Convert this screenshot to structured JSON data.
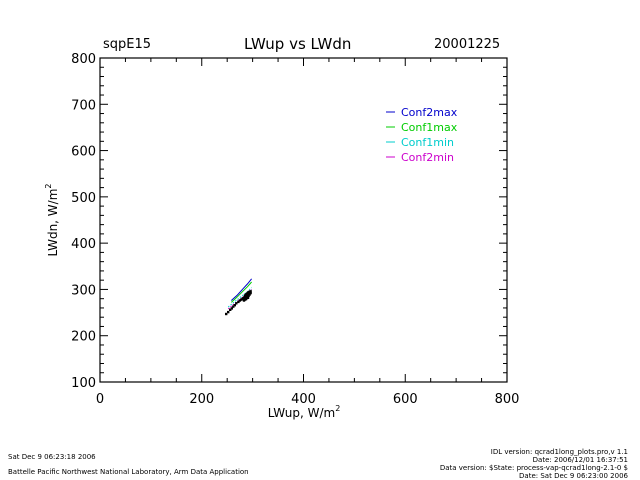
{
  "header": {
    "site": "sqpE15",
    "title": "LWup vs LWdn",
    "date": "20001225"
  },
  "footer": {
    "left_line1": "Sat Dec  9 06:23:18 2006",
    "left_line2": "Battelle Pacific Northwest National Laboratory, Arm Data Application",
    "right_line1": "IDL version: qcrad1long_plots.pro,v 1.1",
    "right_line2": "Date: 2006/12/01 16:37:51",
    "right_line3": "Data version: $State: process-vap-qcrad1long-2.1-0 $",
    "right_line4": "Date: Sat Dec  9 06:23:00 2006"
  },
  "chart_data": {
    "type": "scatter",
    "title": "LWup vs LWdn",
    "xlabel": "LWup, W/m",
    "xlabel_sup": "2",
    "ylabel": "LWdn, W/m",
    "ylabel_sup": "2",
    "xlim": [
      0,
      800
    ],
    "ylim": [
      100,
      800
    ],
    "xticks": [
      0,
      200,
      400,
      600,
      800
    ],
    "yticks": [
      100,
      200,
      300,
      400,
      500,
      600,
      700,
      800
    ],
    "legend_position": "top-right",
    "series": [
      {
        "name": "Conf2max",
        "color": "#0000cc",
        "style": "line",
        "x": [
          258,
          270,
          280,
          290,
          298
        ],
        "y": [
          276,
          288,
          300,
          312,
          323
        ]
      },
      {
        "name": "Conf1max",
        "color": "#00cc00",
        "style": "line",
        "x": [
          258,
          270,
          280,
          290,
          298
        ],
        "y": [
          272,
          284,
          295,
          306,
          316
        ]
      },
      {
        "name": "Conf1min",
        "color": "#00cccc",
        "style": "line",
        "x": [
          252,
          265,
          278,
          290,
          298
        ],
        "y": [
          262,
          274,
          285,
          295,
          304
        ]
      },
      {
        "name": "Conf2min",
        "color": "#cc00cc",
        "style": "line",
        "x": [
          252,
          265,
          278,
          290,
          298
        ],
        "y": [
          258,
          270,
          281,
          291,
          300
        ]
      },
      {
        "name": "",
        "color": "#000000",
        "style": "points",
        "x": [
          248,
          252,
          256,
          259,
          262,
          265,
          268,
          272,
          275,
          278,
          280,
          282,
          284,
          285,
          286,
          287,
          288,
          289,
          290,
          291,
          292,
          293,
          294,
          295,
          296,
          285,
          288,
          290,
          292,
          294,
          296,
          283,
          287,
          291
        ],
        "y": [
          247,
          251,
          256,
          259,
          263,
          266,
          270,
          273,
          276,
          278,
          280,
          281,
          283,
          286,
          288,
          284,
          290,
          287,
          292,
          289,
          294,
          291,
          295,
          293,
          296,
          278,
          281,
          283,
          286,
          289,
          292,
          276,
          279,
          282
        ]
      }
    ]
  }
}
